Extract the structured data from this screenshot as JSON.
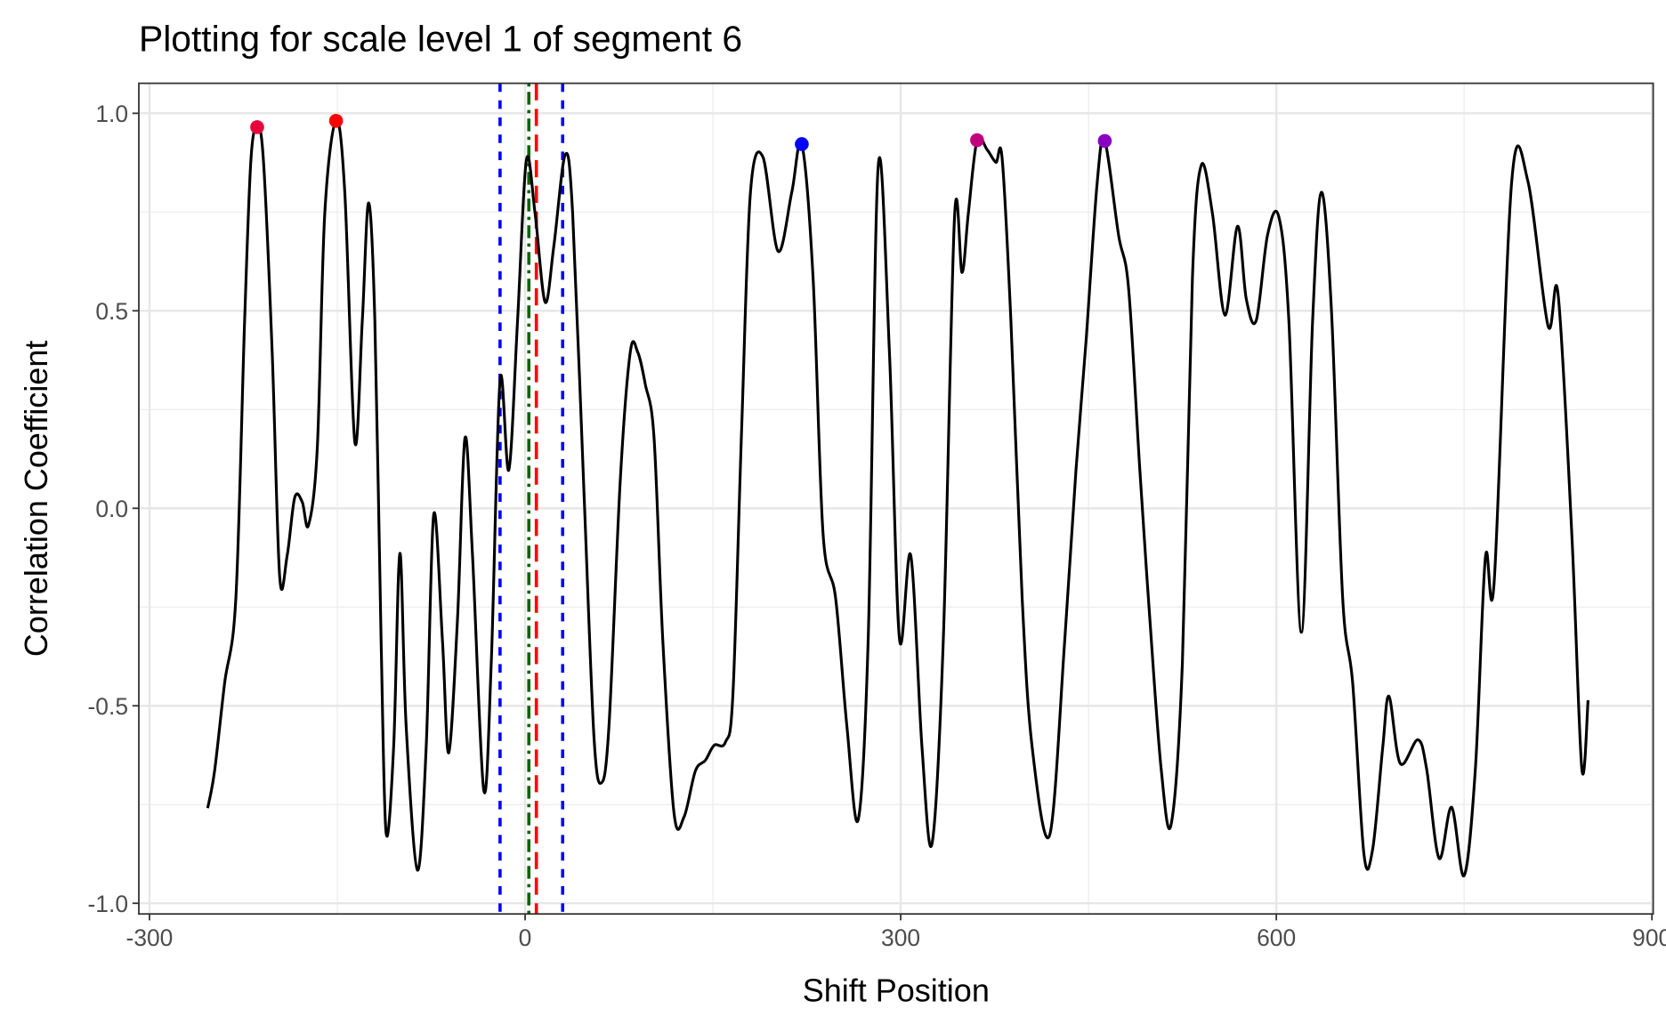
{
  "chart_data": {
    "type": "line",
    "title": "Plotting for scale level 1 of segment 6",
    "x_label": "Shift Position",
    "y_label": "Correlation Coefficient",
    "xlim": [
      -308.5,
      901
    ],
    "ylim": [
      -1.027,
      1.076
    ],
    "xticks": [
      -300,
      0,
      300,
      600,
      900
    ],
    "yticks": [
      {
        "value": -1,
        "label": "-1.0"
      },
      {
        "value": -0.5,
        "label": "-0.5"
      },
      {
        "value": 0,
        "label": "0.0"
      },
      {
        "value": 0.5,
        "label": "0.5"
      },
      {
        "value": 1,
        "label": "1.0"
      }
    ],
    "minor_xticks": [
      -150,
      150,
      450,
      750
    ],
    "minor_yticks": [
      -0.75,
      -0.25,
      0.25,
      0.75
    ],
    "grid": true,
    "series": [
      {
        "color": "#000000",
        "x": [
          -253.5,
          -248,
          -240,
          -231,
          -224,
          -219,
          -214,
          -209,
          -202,
          -196,
          -190,
          -184,
          -178,
          -173,
          -166,
          -160,
          -151,
          -144,
          -136,
          -130,
          -125,
          -120,
          -115,
          -111,
          -105,
          -100,
          -95,
          -86,
          -79,
          -73,
          -66,
          -61,
          -54,
          -48,
          -42,
          -33,
          -27,
          -20,
          -13,
          -6,
          1,
          8,
          16,
          23,
          32,
          38,
          47,
          55,
          61,
          67,
          76,
          84,
          90,
          96,
          103,
          110,
          119,
          127,
          136,
          144,
          151,
          160,
          166,
          173,
          180,
          190,
          202,
          213,
          221,
          230,
          238,
          248,
          257,
          266,
          274,
          282,
          291,
          299,
          308,
          317,
          325,
          334,
          343,
          349,
          354,
          361,
          369,
          376,
          381,
          388,
          397,
          405,
          419,
          431,
          440,
          448,
          457,
          463,
          474,
          482,
          491,
          499,
          508,
          516,
          525,
          533,
          540,
          549,
          559,
          569,
          576,
          584,
          593,
          602,
          610,
          620,
          629,
          636,
          644,
          653,
          661,
          670,
          677,
          685,
          690,
          699,
          713,
          720,
          730,
          740,
          750,
          759,
          767,
          774,
          788,
          801,
          817,
          825,
          836,
          844,
          849
        ],
        "values": [
          -0.759,
          -0.665,
          -0.443,
          -0.227,
          0.476,
          0.881,
          0.965,
          0.881,
          0.395,
          -0.173,
          -0.119,
          0.027,
          0.016,
          -0.043,
          0.151,
          0.746,
          0.981,
          0.8,
          0.168,
          0.476,
          0.773,
          0.476,
          -0.335,
          -0.822,
          -0.605,
          -0.114,
          -0.551,
          -0.916,
          -0.605,
          -0.016,
          -0.335,
          -0.619,
          -0.281,
          0.178,
          -0.119,
          -0.714,
          -0.389,
          0.324,
          0.097,
          0.476,
          0.881,
          0.746,
          0.522,
          0.665,
          0.895,
          0.746,
          0.043,
          -0.578,
          -0.695,
          -0.551,
          0.07,
          0.395,
          0.395,
          0.314,
          0.178,
          -0.335,
          -0.773,
          -0.781,
          -0.665,
          -0.638,
          -0.6,
          -0.592,
          -0.47,
          0.205,
          0.8,
          0.889,
          0.651,
          0.8,
          0.922,
          0.584,
          -0.065,
          -0.227,
          -0.551,
          -0.789,
          -0.335,
          0.865,
          0.395,
          -0.33,
          -0.119,
          -0.605,
          -0.849,
          -0.335,
          0.738,
          0.597,
          0.746,
          0.932,
          0.908,
          0.876,
          0.886,
          0.476,
          -0.227,
          -0.605,
          -0.827,
          -0.335,
          0.097,
          0.422,
          0.827,
          0.93,
          0.692,
          0.557,
          0.097,
          -0.281,
          -0.659,
          -0.8,
          -0.389,
          0.584,
          0.868,
          0.746,
          0.489,
          0.714,
          0.53,
          0.476,
          0.692,
          0.738,
          0.476,
          -0.314,
          0.476,
          0.8,
          0.503,
          -0.227,
          -0.443,
          -0.876,
          -0.862,
          -0.605,
          -0.476,
          -0.646,
          -0.586,
          -0.659,
          -0.886,
          -0.757,
          -0.93,
          -0.659,
          -0.124,
          -0.186,
          0.827,
          0.827,
          0.462,
          0.543,
          -0.065,
          -0.659,
          -0.486
        ]
      }
    ],
    "points": [
      {
        "x": -214,
        "y": 0.965,
        "color": "#e8003c"
      },
      {
        "x": -151,
        "y": 0.981,
        "color": "#ff0000"
      },
      {
        "x": 221,
        "y": 0.922,
        "color": "#0000ff"
      },
      {
        "x": 361,
        "y": 0.932,
        "color": "#c0007e"
      },
      {
        "x": 463,
        "y": 0.93,
        "color": "#8a00c0"
      }
    ],
    "vlines": [
      {
        "x": -20,
        "color": "#0000ff",
        "dash": "dashed"
      },
      {
        "x": 30,
        "color": "#0000ff",
        "dash": "dashed"
      },
      {
        "x": 3,
        "color": "#006400",
        "dash": "dotdash"
      },
      {
        "x": 9,
        "color": "#ff0000",
        "dash": "longdash"
      }
    ]
  }
}
